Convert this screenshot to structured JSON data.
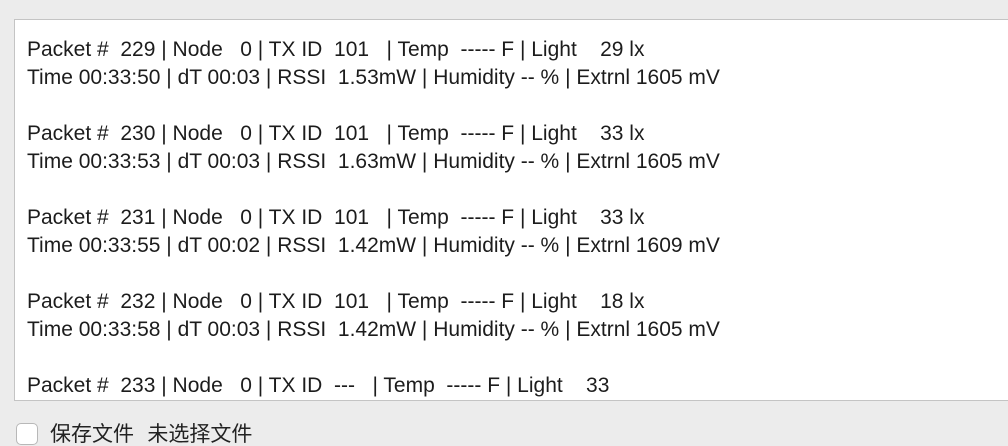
{
  "log": {
    "lines": [
      "Packet #  229 | Node   0 | TX ID  101   | Temp  ----- F | Light    29 lx",
      "Time 00:33:50 | dT 00:03 | RSSI  1.53mW | Humidity -- % | Extrnl 1605 mV",
      "",
      "Packet #  230 | Node   0 | TX ID  101   | Temp  ----- F | Light    33 lx",
      "Time 00:33:53 | dT 00:03 | RSSI  1.63mW | Humidity -- % | Extrnl 1605 mV",
      "",
      "Packet #  231 | Node   0 | TX ID  101   | Temp  ----- F | Light    33 lx",
      "Time 00:33:55 | dT 00:02 | RSSI  1.42mW | Humidity -- % | Extrnl 1609 mV",
      "",
      "Packet #  232 | Node   0 | TX ID  101   | Temp  ----- F | Light    18 lx",
      "Time 00:33:58 | dT 00:03 | RSSI  1.42mW | Humidity -- % | Extrnl 1605 mV",
      "",
      "Packet #  233 | Node   0 | TX ID  ---   | Temp  ----- F | Light    33"
    ]
  },
  "save_to_file": {
    "checked": false,
    "label": "保存文件  未选择文件"
  },
  "colors": {
    "background": "#ececec",
    "panel": "#ffffff",
    "text": "#1c1c1c",
    "border": "#c4c4c4"
  }
}
